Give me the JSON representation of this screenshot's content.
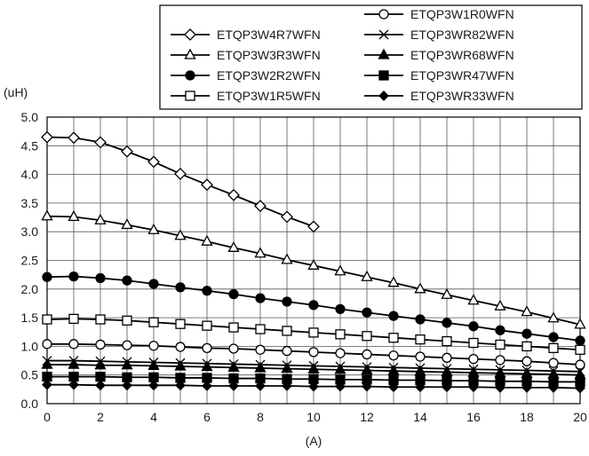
{
  "chart_data": {
    "type": "line",
    "title": "",
    "xlabel": "(A)",
    "ylabel": "(uH)",
    "xlim": [
      0,
      20
    ],
    "ylim": [
      0.0,
      5.0
    ],
    "x_ticks": [
      "0",
      "2",
      "4",
      "6",
      "8",
      "10",
      "12",
      "14",
      "16",
      "18",
      "20"
    ],
    "y_ticks": [
      "0.0",
      "0.5",
      "1.0",
      "1.5",
      "2.0",
      "2.5",
      "3.0",
      "3.5",
      "4.0",
      "4.5",
      "5.0"
    ],
    "grid": true,
    "legend_position": "top-right",
    "line_color": "#000000",
    "series": [
      {
        "name": "ETQP3W4R7WFN",
        "marker": "diamond-open",
        "x": [
          0,
          1,
          2,
          3,
          4,
          5,
          6,
          7,
          8,
          9,
          10
        ],
        "values": [
          4.65,
          4.64,
          4.56,
          4.4,
          4.22,
          4.01,
          3.82,
          3.64,
          3.45,
          3.26,
          3.09
        ]
      },
      {
        "name": "ETQP3W3R3WFN",
        "marker": "triangle-open",
        "x": [
          0,
          1,
          2,
          3,
          4,
          5,
          6,
          7,
          8,
          9,
          10,
          11,
          12,
          13,
          14,
          15,
          16,
          17,
          18,
          19,
          20
        ],
        "values": [
          3.27,
          3.26,
          3.2,
          3.12,
          3.03,
          2.93,
          2.83,
          2.72,
          2.62,
          2.51,
          2.41,
          2.31,
          2.21,
          2.11,
          2.0,
          1.9,
          1.8,
          1.7,
          1.6,
          1.49,
          1.38
        ]
      },
      {
        "name": "ETQP3W2R2WFN",
        "marker": "circle-filled",
        "x": [
          0,
          1,
          2,
          3,
          4,
          5,
          6,
          7,
          8,
          9,
          10,
          11,
          12,
          13,
          14,
          15,
          16,
          17,
          18,
          19,
          20
        ],
        "values": [
          2.21,
          2.22,
          2.19,
          2.15,
          2.09,
          2.03,
          1.97,
          1.91,
          1.84,
          1.78,
          1.72,
          1.65,
          1.59,
          1.53,
          1.47,
          1.41,
          1.35,
          1.28,
          1.22,
          1.16,
          1.1
        ]
      },
      {
        "name": "ETQP3W1R5WFN",
        "marker": "square-open",
        "x": [
          0,
          1,
          2,
          3,
          4,
          5,
          6,
          7,
          8,
          9,
          10,
          11,
          12,
          13,
          14,
          15,
          16,
          17,
          18,
          19,
          20
        ],
        "values": [
          1.47,
          1.48,
          1.47,
          1.45,
          1.42,
          1.39,
          1.36,
          1.33,
          1.3,
          1.27,
          1.24,
          1.21,
          1.18,
          1.15,
          1.12,
          1.09,
          1.06,
          1.03,
          1.0,
          0.97,
          0.94
        ]
      },
      {
        "name": "ETQP3W1R0WFN",
        "marker": "circle-open",
        "x": [
          0,
          1,
          2,
          3,
          4,
          5,
          6,
          7,
          8,
          9,
          10,
          11,
          12,
          13,
          14,
          15,
          16,
          17,
          18,
          19,
          20
        ],
        "values": [
          1.04,
          1.04,
          1.03,
          1.02,
          1.01,
          0.99,
          0.97,
          0.96,
          0.94,
          0.92,
          0.9,
          0.88,
          0.86,
          0.84,
          0.82,
          0.8,
          0.78,
          0.76,
          0.74,
          0.71,
          0.68
        ]
      },
      {
        "name": "ETQP3WR82WFN",
        "marker": "x",
        "x": [
          0,
          1,
          2,
          3,
          4,
          5,
          6,
          7,
          8,
          9,
          10,
          11,
          12,
          13,
          14,
          15,
          16,
          17,
          18,
          19,
          20
        ],
        "values": [
          0.75,
          0.75,
          0.74,
          0.73,
          0.72,
          0.71,
          0.7,
          0.69,
          0.68,
          0.67,
          0.66,
          0.65,
          0.64,
          0.63,
          0.62,
          0.61,
          0.6,
          0.59,
          0.58,
          0.57,
          0.56
        ]
      },
      {
        "name": "ETQP3WR68WFN",
        "marker": "triangle-filled",
        "x": [
          0,
          1,
          2,
          3,
          4,
          5,
          6,
          7,
          8,
          9,
          10,
          11,
          12,
          13,
          14,
          15,
          16,
          17,
          18,
          19,
          20
        ],
        "values": [
          0.68,
          0.68,
          0.67,
          0.67,
          0.66,
          0.65,
          0.64,
          0.63,
          0.62,
          0.61,
          0.6,
          0.59,
          0.58,
          0.57,
          0.56,
          0.55,
          0.54,
          0.53,
          0.52,
          0.51,
          0.5
        ]
      },
      {
        "name": "ETQP3WR47WFN",
        "marker": "square-filled",
        "x": [
          0,
          1,
          2,
          3,
          4,
          5,
          6,
          7,
          8,
          9,
          10,
          11,
          12,
          13,
          14,
          15,
          16,
          17,
          18,
          19,
          20
        ],
        "values": [
          0.47,
          0.47,
          0.47,
          0.46,
          0.46,
          0.45,
          0.45,
          0.44,
          0.44,
          0.43,
          0.43,
          0.42,
          0.42,
          0.41,
          0.41,
          0.4,
          0.4,
          0.39,
          0.39,
          0.38,
          0.38
        ]
      },
      {
        "name": "ETQP3WR33WFN",
        "marker": "diamond-filled",
        "x": [
          0,
          1,
          2,
          3,
          4,
          5,
          6,
          7,
          8,
          9,
          10,
          11,
          12,
          13,
          14,
          15,
          16,
          17,
          18,
          19,
          20
        ],
        "values": [
          0.33,
          0.33,
          0.32,
          0.32,
          0.32,
          0.32,
          0.31,
          0.31,
          0.31,
          0.31,
          0.3,
          0.3,
          0.3,
          0.29,
          0.29,
          0.29,
          0.29,
          0.28,
          0.28,
          0.28,
          0.27
        ]
      }
    ]
  }
}
